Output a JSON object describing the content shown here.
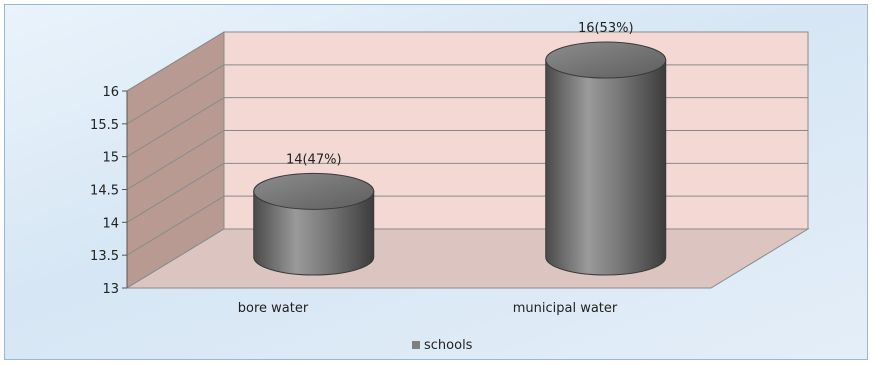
{
  "chart_data": {
    "type": "bar",
    "style": "3d-cylinder",
    "categories": [
      "bore water",
      "municipal water"
    ],
    "series": [
      {
        "name": "schools",
        "values": [
          14,
          16
        ]
      }
    ],
    "data_labels": [
      "14(47%)",
      "16(53%)"
    ],
    "yticks": [
      "13",
      "13.5",
      "14",
      "14.5",
      "15",
      "15.5",
      "16"
    ],
    "ylim": [
      13,
      16
    ],
    "grid": true,
    "legend": "bottom",
    "colors": {
      "bar": "#7f7f7f",
      "back_wall": "#f3d8d3",
      "side_wall": "#b89a93",
      "floor": "#d9c2bd",
      "background": "#dce9f5"
    }
  }
}
